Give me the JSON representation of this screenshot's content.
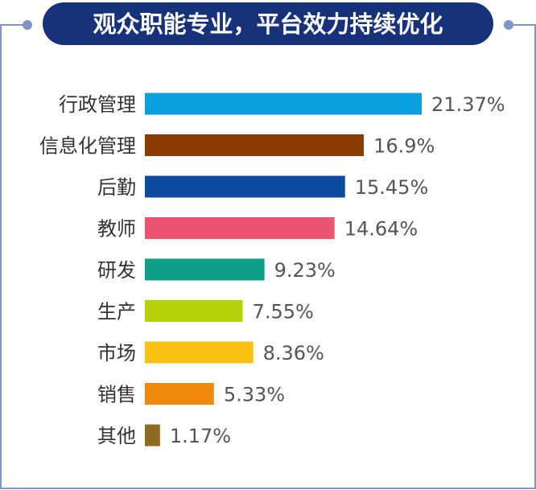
{
  "title": "观众职能专业，平台效力持续优化",
  "colors": {
    "frame": "#7f95c8",
    "title_bg": "#17327a",
    "title_text": "#ffffff",
    "label_text": "#333333",
    "value_text": "#555555"
  },
  "chart_data": {
    "type": "bar",
    "orientation": "horizontal",
    "title": "观众职能专业，平台效力持续优化",
    "categories": [
      "行政管理",
      "信息化管理",
      "后勤",
      "教师",
      "研发",
      "生产",
      "市场",
      "销售",
      "其他"
    ],
    "values": [
      21.37,
      16.9,
      15.45,
      14.64,
      9.23,
      7.55,
      8.36,
      5.33,
      1.17
    ],
    "value_labels": [
      "21.37%",
      "16.9%",
      "15.45%",
      "14.64%",
      "9.23%",
      "7.55%",
      "8.36%",
      "5.33%",
      "1.17%"
    ],
    "bar_colors": [
      "#0aa0e0",
      "#8b3a00",
      "#0b4a9e",
      "#ec5370",
      "#0e9f86",
      "#b6d10a",
      "#f8c113",
      "#ef8a0b",
      "#8e6a25"
    ],
    "unit": "%",
    "grid": false,
    "legend": "none"
  }
}
